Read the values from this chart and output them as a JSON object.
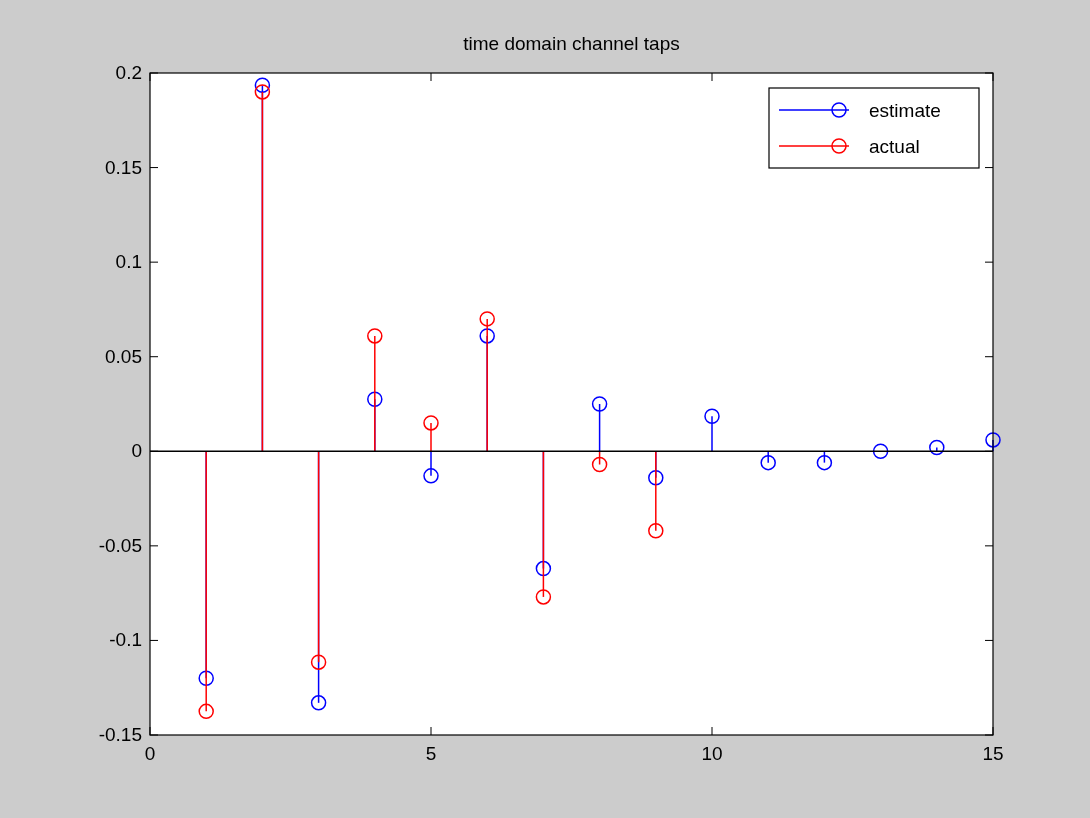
{
  "chart_data": {
    "type": "lollipop",
    "title": "time domain channel taps",
    "xlim": [
      0,
      15
    ],
    "xticks": [
      0,
      5,
      10,
      15
    ],
    "ylim": [
      -0.15,
      0.2
    ],
    "yticks": [
      -0.15,
      -0.1,
      -0.05,
      0,
      0.05,
      0.1,
      0.15,
      0.2
    ],
    "marker": "circle",
    "legend": "top right",
    "grid": false,
    "ref_lines": [
      {
        "axis": "y",
        "value": 0,
        "color": "#000000"
      }
    ],
    "series": [
      {
        "name": "estimate",
        "color": "#0000ff",
        "x": [
          1,
          2,
          3,
          4,
          5,
          6,
          7,
          8,
          9,
          10,
          11,
          12,
          13,
          14,
          15
        ],
        "values": [
          -0.12,
          0.1935,
          -0.133,
          0.0275,
          -0.013,
          0.061,
          -0.062,
          0.025,
          -0.014,
          0.0185,
          -0.006,
          -0.006,
          0,
          0.002,
          0.006
        ]
      },
      {
        "name": "actual",
        "color": "#ff0000",
        "x": [
          1,
          2,
          3,
          4,
          5,
          6,
          7,
          8,
          9
        ],
        "values": [
          -0.1375,
          0.19,
          -0.1115,
          0.061,
          0.015,
          0.07,
          -0.077,
          -0.007,
          -0.042
        ]
      }
    ]
  }
}
